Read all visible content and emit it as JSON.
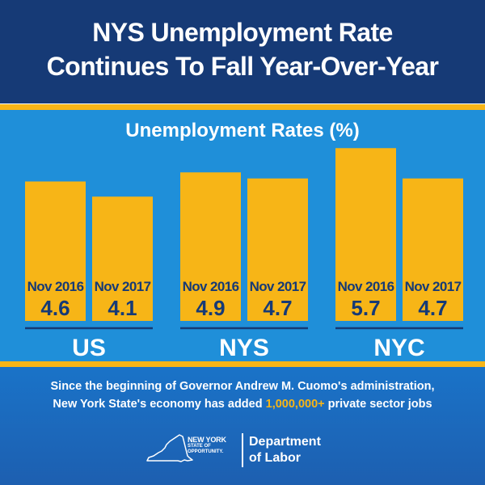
{
  "header": {
    "title_line1": "NYS Unemployment Rate",
    "title_line2": "Continues To Fall Year-Over-Year"
  },
  "footer": {
    "line1": "Since the beginning of Governor Andrew M. Cuomo's administration,",
    "line2_prefix": "New York State's economy has added",
    "line2_highlight": "1,000,000+",
    "line2_suffix": "private sector jobs"
  },
  "logo": {
    "nys_line1": "NEW YORK",
    "nys_line2": "STATE OF",
    "nys_line3": "OPPORTUNITY.",
    "dept_line1": "Department",
    "dept_line2": "of Labor"
  },
  "colors": {
    "header_bg": "#163a76",
    "chart_bg": "#1f8fd9",
    "accent": "#f7b517",
    "bar": "#f7b517",
    "bar_text": "#163a76",
    "white": "#ffffff"
  },
  "chart_data": {
    "type": "bar",
    "title": "Unemployment Rates (%)",
    "xlabel": "",
    "ylabel": "",
    "groups": [
      "US",
      "NYS",
      "NYC"
    ],
    "series": [
      {
        "name": "Nov 2016",
        "values": [
          4.6,
          4.9,
          5.7
        ]
      },
      {
        "name": "Nov 2017",
        "values": [
          4.1,
          4.7,
          4.7
        ]
      }
    ],
    "ylim": [
      0,
      6
    ],
    "grid": false,
    "legend": "none"
  }
}
